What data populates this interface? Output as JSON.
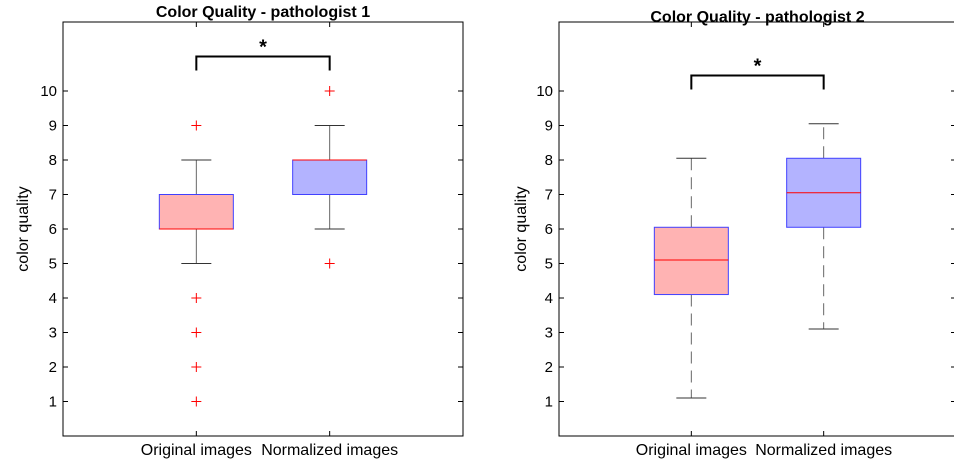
{
  "chart_data": [
    {
      "type": "boxplot",
      "title": "Color Quality - pathologist 1",
      "ylabel": "color quality",
      "xlabel": "",
      "categories": [
        "Original images",
        "Normalized images"
      ],
      "yticks": [
        "1",
        "2",
        "3",
        "4",
        "5",
        "6",
        "7",
        "8",
        "9",
        "10"
      ],
      "ylim": [
        0,
        12
      ],
      "grid": false,
      "boxes": [
        {
          "category": "Original images",
          "q1": 6,
          "median": 6,
          "q3": 7,
          "whisker_low": 5,
          "whisker_high": 8,
          "outliers": [
            9,
            4,
            3,
            2,
            1
          ],
          "fill_color": "#ffb3b3",
          "edge_color": "#4040ff"
        },
        {
          "category": "Normalized images",
          "q1": 7,
          "median": 8,
          "q3": 8,
          "whisker_low": 6,
          "whisker_high": 9,
          "outliers": [
            10,
            5
          ],
          "fill_color": "#b3b3ff",
          "edge_color": "#4040ff"
        }
      ],
      "whisker_style": "solid",
      "median_color": "#ff0000",
      "outlier_color": "#ff0000",
      "significance": {
        "label": "*",
        "between": [
          "Original images",
          "Normalized images"
        ],
        "level": 11
      }
    },
    {
      "type": "boxplot",
      "title": "Color Quality - pathologist 2",
      "ylabel": "color quality",
      "xlabel": "",
      "categories": [
        "Original images",
        "Normalized images"
      ],
      "yticks": [
        "1",
        "2",
        "3",
        "4",
        "5",
        "6",
        "7",
        "8",
        "9",
        "10"
      ],
      "ylim": [
        0,
        12
      ],
      "grid": false,
      "boxes": [
        {
          "category": "Original images",
          "q1": 4.1,
          "median": 5.1,
          "q3": 6.05,
          "whisker_low": 1.1,
          "whisker_high": 8.05,
          "outliers": [],
          "fill_color": "#ffb3b3",
          "edge_color": "#4040ff"
        },
        {
          "category": "Normalized images",
          "q1": 6.05,
          "median": 7.05,
          "q3": 8.05,
          "whisker_low": 3.1,
          "whisker_high": 9.05,
          "outliers": [],
          "fill_color": "#b3b3ff",
          "edge_color": "#4040ff"
        }
      ],
      "whisker_style": "dashed",
      "median_color": "#ff0000",
      "outlier_color": "#ff0000",
      "significance": {
        "label": "*",
        "between": [
          "Original images",
          "Normalized images"
        ],
        "level": 10.45
      }
    }
  ]
}
